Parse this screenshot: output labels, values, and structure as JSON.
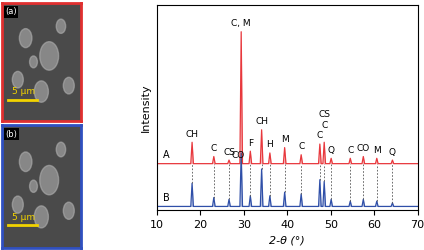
{
  "chart_data": {
    "type": "line",
    "x_label": "2-θ (°)",
    "y_label": "Intensity",
    "xlim": [
      10,
      70
    ],
    "xticks": [
      10,
      20,
      30,
      40,
      50,
      60,
      70
    ],
    "ylim": [
      0,
      115
    ],
    "yticks": [],
    "tick_labels": "x",
    "series": [
      {
        "name": "A",
        "color": "#e8383d",
        "x": [
          10,
          17.8,
          18.1,
          18.4,
          22.8,
          23.1,
          23.4,
          26.3,
          26.6,
          26.9,
          29.1,
          29.4,
          29.7,
          31.2,
          31.5,
          31.8,
          33.8,
          34.1,
          34.4,
          35.7,
          36.0,
          36.3,
          39.1,
          39.4,
          39.7,
          42.9,
          43.2,
          43.5,
          47.2,
          47.5,
          47.8,
          48.2,
          48.5,
          48.8,
          49.8,
          50.1,
          50.4,
          54.2,
          54.5,
          54.8,
          57.2,
          57.5,
          57.8,
          60.3,
          60.6,
          60.9,
          63.9,
          64.2,
          64.5,
          70
        ],
        "values": [
          26,
          26,
          38,
          26,
          26,
          30,
          26,
          26,
          28,
          26,
          26,
          100,
          26,
          26,
          33,
          26,
          26,
          45,
          26,
          26,
          32,
          26,
          26,
          35,
          26,
          26,
          31,
          26,
          26,
          37,
          26,
          26,
          38,
          26,
          26,
          29,
          26,
          26,
          29,
          26,
          26,
          30,
          26,
          26,
          29,
          26,
          26,
          28,
          26,
          26
        ]
      },
      {
        "name": "B",
        "color": "#2f4fa8",
        "x": [
          10,
          17.8,
          18.1,
          18.4,
          22.8,
          23.1,
          23.4,
          26.3,
          26.6,
          26.9,
          29.1,
          29.4,
          29.7,
          31.2,
          31.5,
          31.8,
          33.8,
          34.1,
          34.4,
          35.7,
          36.0,
          36.3,
          39.1,
          39.4,
          39.7,
          42.9,
          43.2,
          43.5,
          47.2,
          47.5,
          47.8,
          48.2,
          48.5,
          48.8,
          49.8,
          50.1,
          50.4,
          54.2,
          54.5,
          54.8,
          57.2,
          57.5,
          57.8,
          60.3,
          60.6,
          60.9,
          63.9,
          64.2,
          64.5,
          70
        ],
        "values": [
          2,
          2,
          15,
          2,
          2,
          7,
          2,
          2,
          6,
          2,
          2,
          32,
          2,
          2,
          8,
          2,
          2,
          23,
          2,
          2,
          8,
          2,
          2,
          10,
          2,
          2,
          9,
          2,
          2,
          17,
          2,
          2,
          16,
          2,
          2,
          6,
          2,
          2,
          5,
          2,
          2,
          6,
          2,
          2,
          5,
          2,
          2,
          4,
          2,
          2
        ]
      }
    ],
    "annotations": [
      {
        "text": "CH",
        "x": 18.1
      },
      {
        "text": "C",
        "x": 23.1
      },
      {
        "text": "CS",
        "x": 26.6
      },
      {
        "text": "CO",
        "x": 28.6
      },
      {
        "text": "C, M",
        "x": 29.4
      },
      {
        "text": "F",
        "x": 31.5
      },
      {
        "text": "CH",
        "x": 34.1
      },
      {
        "text": "H",
        "x": 36.0
      },
      {
        "text": "M",
        "x": 39.4
      },
      {
        "text": "C",
        "x": 43.2
      },
      {
        "text": "C",
        "x": 47.5
      },
      {
        "text": "C",
        "x": 48.5
      },
      {
        "text": "CS",
        "x": 48.5
      },
      {
        "text": "Q",
        "x": 50.1
      },
      {
        "text": "C",
        "x": 54.5
      },
      {
        "text": "CO",
        "x": 57.5
      },
      {
        "text": "M",
        "x": 60.6
      },
      {
        "text": "Q",
        "x": 64.2
      }
    ]
  },
  "images": [
    {
      "label": "(a)",
      "scale_bar": "5 μm",
      "frame_color": "#e03030"
    },
    {
      "label": "(b)",
      "scale_bar": "5 μm",
      "frame_color": "#3050c0"
    }
  ]
}
